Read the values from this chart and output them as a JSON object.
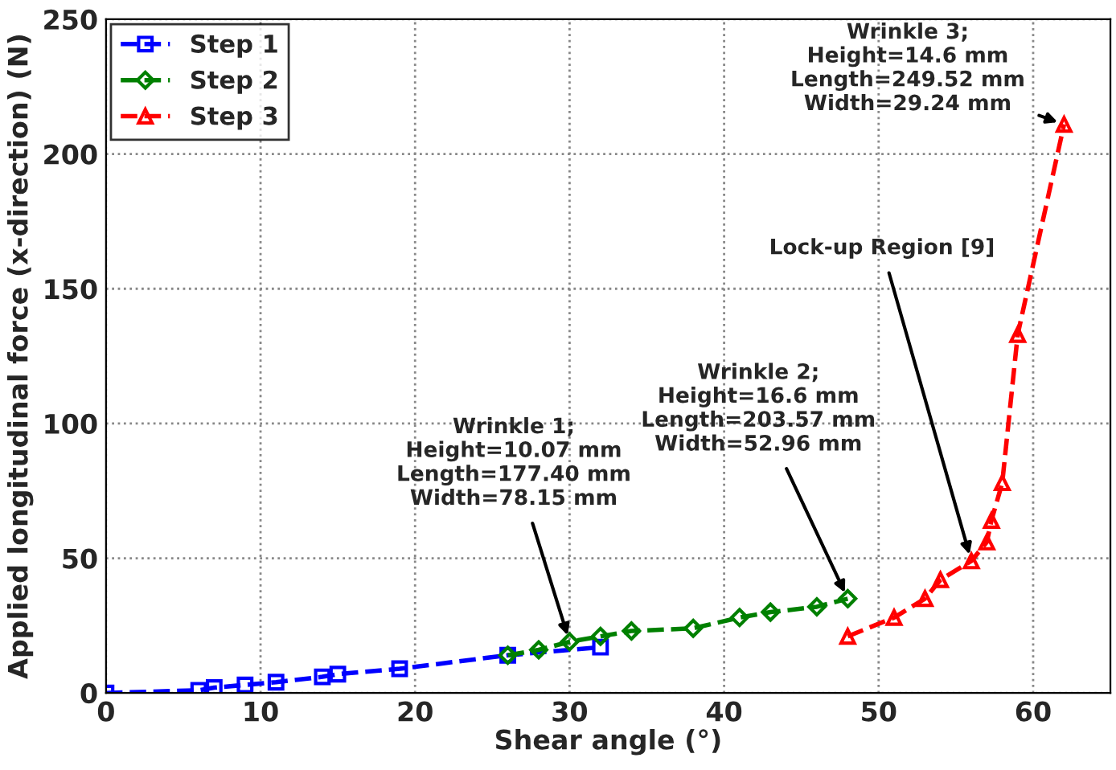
{
  "chart_data": {
    "type": "line",
    "xlabel": "Shear angle (°)",
    "ylabel": "Applied longitudinal force (x-direction) (N)",
    "xlim": [
      0,
      65
    ],
    "xticks": [
      0,
      10,
      20,
      30,
      40,
      50,
      60
    ],
    "ylim": [
      0,
      250
    ],
    "yticks": [
      0,
      50,
      100,
      150,
      200,
      250
    ],
    "grid": true,
    "legend": "top left",
    "line_style": "dashed",
    "series": [
      {
        "name": "Step 1",
        "color": "#0000ff",
        "marker": "square",
        "x": [
          0,
          6,
          7,
          9,
          11,
          14,
          15,
          19,
          26,
          32
        ],
        "values": [
          0,
          1,
          2,
          3,
          4,
          6,
          7,
          9,
          14,
          17
        ]
      },
      {
        "name": "Step 2",
        "color": "#008000",
        "marker": "diamond",
        "x": [
          26,
          28,
          30,
          32,
          34,
          38,
          41,
          43,
          46,
          48
        ],
        "values": [
          14,
          16,
          19,
          21,
          23,
          24,
          28,
          30,
          32,
          35
        ]
      },
      {
        "name": "Step 3",
        "color": "#ff0000",
        "marker": "triangle",
        "x": [
          48,
          51,
          53,
          54,
          56,
          57,
          57.3,
          58,
          59,
          62
        ],
        "values": [
          21,
          28,
          35,
          42,
          49,
          56,
          64,
          78,
          133,
          211
        ]
      }
    ],
    "annotations": [
      {
        "text": "Wrinkle 1;\nHeight=10.07 mm\nLength=177.40 mm\nWidth=78.15 mm",
        "x": 30,
        "y": 19
      },
      {
        "text": "Wrinkle 2;\nHeight=16.6 mm\nLength=203.57 mm\nWidth=52.96 mm",
        "x": 48,
        "y": 35
      },
      {
        "text": "Lock-up Region [9]",
        "x": 56,
        "y": 49
      },
      {
        "text": "Wrinkle 3;\nHeight=14.6 mm\nLength=249.52 mm\nWidth=29.24 mm",
        "x": 62,
        "y": 211
      }
    ]
  }
}
